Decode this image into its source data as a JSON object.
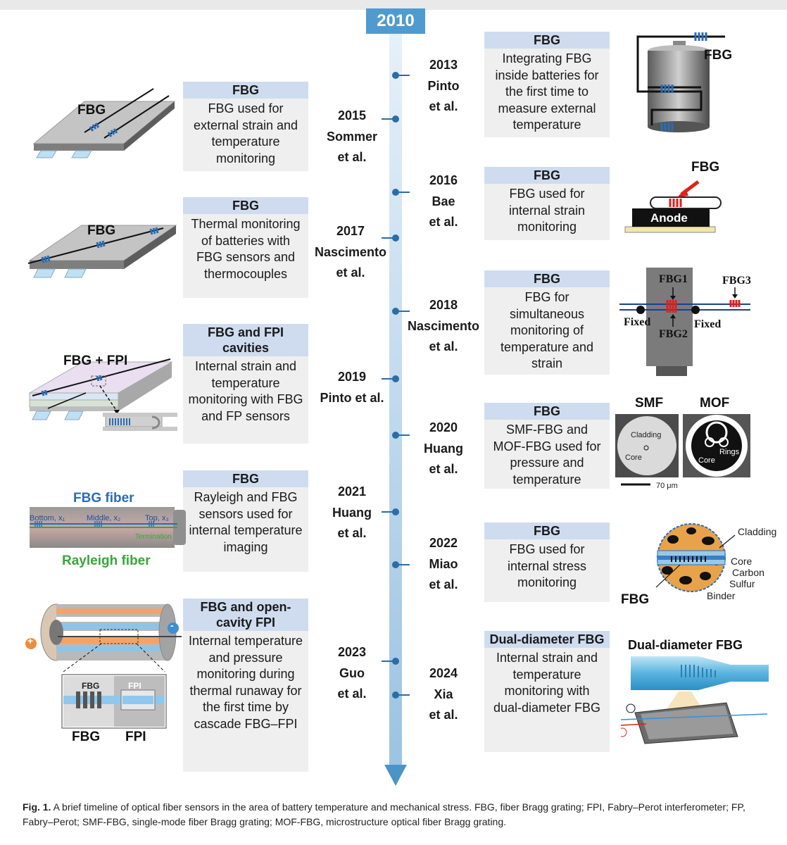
{
  "start_year": "2010",
  "colors": {
    "timeline": "#9cc3e2",
    "timeline_dark": "#4a94c8",
    "card_head": "#cfdcef",
    "card_body": "#efefef",
    "fbg_blue": "#2a6db5",
    "rayleigh_green": "#3aa63a"
  },
  "left_events": [
    {
      "year": "2015",
      "author": "Sommer",
      "suffix": "et al.",
      "head": "FBG",
      "body": "FBG used for external strain and temperature monitoring"
    },
    {
      "year": "2017",
      "author": "Nascimento",
      "suffix": "et al.",
      "head": "FBG",
      "body": "Thermal monitoring of batteries with FBG sensors and thermocouples"
    },
    {
      "year": "2019",
      "author": "Pinto et al.",
      "suffix": "",
      "head": "FBG and FPI cavities",
      "body": "Internal strain and temperature monitoring with FBG and FP sensors"
    },
    {
      "year": "2021",
      "author": "Huang",
      "suffix": "et al.",
      "head": "FBG",
      "body": "Rayleigh and FBG sensors used for internal temperature imaging"
    },
    {
      "year": "2023",
      "author": "Guo",
      "suffix": "et al.",
      "head": "FBG and open-cavity FPI",
      "body": "Internal temperature and pressure monitoring during thermal runaway for the first time by cascade FBG–FPI"
    }
  ],
  "right_events": [
    {
      "year": "2013",
      "author": "Pinto",
      "suffix": "et al.",
      "head": "FBG",
      "body": "Integrating FBG inside batteries for the first time to measure external temperature"
    },
    {
      "year": "2016",
      "author": "Bae",
      "suffix": "et al.",
      "head": "FBG",
      "body": "FBG used for internal strain monitoring"
    },
    {
      "year": "2018",
      "author": "Nascimento",
      "suffix": "et al.",
      "head": "FBG",
      "body": "FBG for simultaneous monitoring of temperature and strain"
    },
    {
      "year": "2020",
      "author": "Huang",
      "suffix": "et al.",
      "head": "FBG",
      "body": "SMF-FBG and MOF-FBG used for pressure and temperature"
    },
    {
      "year": "2022",
      "author": "Miao",
      "suffix": "et al.",
      "head": "FBG",
      "body": "FBG used for internal stress monitoring"
    },
    {
      "year": "2024",
      "author": "Xia",
      "suffix": "et al.",
      "head": "Dual-diameter FBG",
      "body": "Internal strain and temperature monitoring with dual-diameter FBG"
    }
  ],
  "figure_labels": {
    "l1_fbg": "FBG",
    "l2_fbg": "FBG",
    "l3_fbg_fpi": "FBG + FPI",
    "l4_fbg_fiber": "FBG fiber",
    "l4_rayleigh": "Rayleigh fiber",
    "l4_bottom": "Bottom, x₁",
    "l4_middle": "Middle, x₂",
    "l4_top": "Top, x₃",
    "l4_termination": "Termination",
    "l5_fbg_small": "FBG",
    "l5_fpi_small": "FPI",
    "l5_fbg": "FBG",
    "l5_fpi": "FPI",
    "l5_plus": "+",
    "l5_minus": "-",
    "r1_fbg": "FBG",
    "r2_fbg": "FBG",
    "r2_anode": "Anode",
    "r3_fbg1": "FBG1",
    "r3_fbg2": "FBG2",
    "r3_fbg3": "FBG3",
    "r3_fixed_left": "Fixed",
    "r3_fixed_right": "Fixed",
    "r4_smf": "SMF",
    "r4_mof": "MOF",
    "r4_cladding": "Cladding",
    "r4_core": "Core",
    "r4_core2": "Core",
    "r4_rings": "Rings",
    "r4_scale": "70 μm",
    "r5_cladding": "Cladding",
    "r5_core": "Core",
    "r5_carbon": "Carbon",
    "r5_sulfur": "Sulfur",
    "r5_binder": "Binder",
    "r5_fbg": "FBG",
    "r6_title": "Dual-diameter FBG"
  },
  "caption": {
    "label": "Fig. 1.",
    "text": "A brief timeline of optical fiber sensors in the area of battery temperature and mechanical stress. FBG, fiber Bragg grating; FPI, Fabry–Perot interferometer; FP, Fabry–Perot; SMF-FBG, single-mode fiber Bragg grating; MOF-FBG, microstructure optical fiber Bragg grating."
  }
}
